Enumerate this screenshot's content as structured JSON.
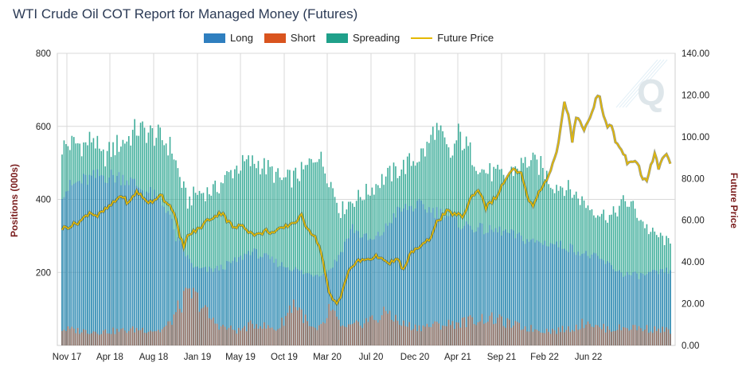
{
  "title": "WTI Crude Oil COT Report for Managed Money (Futures)",
  "legend": [
    {
      "label": "Long",
      "color": "#2f7fbf",
      "kind": "box"
    },
    {
      "label": "Short",
      "color": "#d9541e",
      "kind": "box"
    },
    {
      "label": "Spreading",
      "color": "#1fa08a",
      "kind": "box"
    },
    {
      "label": "Future Price",
      "color": "#e5b800",
      "kind": "line"
    }
  ],
  "chart_data": {
    "type": "bar",
    "title": "WTI Crude Oil COT Report for Managed Money (Futures)",
    "ylabel_left": "Positions (000s)",
    "ylabel_right": "Future Price",
    "ylim_left": [
      0,
      800
    ],
    "ylim_right": [
      0,
      140
    ],
    "yticks_left": [
      "200",
      "400",
      "600",
      "800"
    ],
    "yticks_right": [
      "0.00",
      "20.00",
      "40.00",
      "60.00",
      "80.00",
      "100.00",
      "120.00",
      "140.00"
    ],
    "xticks": [
      "Nov 17",
      "Apr 18",
      "Aug 18",
      "Jan 19",
      "May 19",
      "Oct 19",
      "Mar 20",
      "Jul 20",
      "Dec 20",
      "Apr 21",
      "Sep 21",
      "Feb 22",
      "Jun 22"
    ],
    "grid": true,
    "legend_position": "top",
    "colors": {
      "long": "#2f7fbf",
      "short": "#d9541e",
      "spreading": "#1fa08a",
      "price": "#e5b800"
    },
    "series": [
      {
        "name": "Long",
        "points": [
          [
            0,
            430
          ],
          [
            8,
            455
          ],
          [
            20,
            475
          ],
          [
            32,
            470
          ],
          [
            40,
            440
          ],
          [
            46,
            420
          ],
          [
            54,
            380
          ],
          [
            58,
            300
          ],
          [
            64,
            245
          ],
          [
            68,
            215
          ],
          [
            74,
            210
          ],
          [
            80,
            215
          ],
          [
            90,
            240
          ],
          [
            96,
            265
          ],
          [
            100,
            255
          ],
          [
            106,
            240
          ],
          [
            112,
            225
          ],
          [
            118,
            215
          ],
          [
            124,
            200
          ],
          [
            130,
            200
          ],
          [
            136,
            210
          ],
          [
            140,
            240
          ],
          [
            144,
            285
          ],
          [
            148,
            330
          ],
          [
            152,
            310
          ],
          [
            158,
            290
          ],
          [
            164,
            320
          ],
          [
            170,
            370
          ],
          [
            176,
            385
          ],
          [
            182,
            390
          ],
          [
            190,
            375
          ],
          [
            196,
            365
          ],
          [
            202,
            340
          ],
          [
            210,
            330
          ],
          [
            218,
            320
          ],
          [
            224,
            320
          ],
          [
            234,
            300
          ],
          [
            240,
            290
          ],
          [
            250,
            285
          ],
          [
            260,
            272
          ],
          [
            266,
            255
          ],
          [
            270,
            250
          ],
          [
            276,
            235
          ],
          [
            280,
            220
          ],
          [
            286,
            200
          ],
          [
            294,
            195
          ],
          [
            300,
            200
          ],
          [
            306,
            205
          ],
          [
            310,
            210
          ]
        ]
      },
      {
        "name": "Short",
        "points": [
          [
            0,
            45
          ],
          [
            10,
            40
          ],
          [
            20,
            38
          ],
          [
            30,
            40
          ],
          [
            40,
            45
          ],
          [
            50,
            40
          ],
          [
            55,
            60
          ],
          [
            58,
            90
          ],
          [
            62,
            125
          ],
          [
            66,
            140
          ],
          [
            70,
            120
          ],
          [
            76,
            70
          ],
          [
            82,
            50
          ],
          [
            90,
            40
          ],
          [
            96,
            55
          ],
          [
            100,
            60
          ],
          [
            104,
            50
          ],
          [
            110,
            45
          ],
          [
            114,
            80
          ],
          [
            118,
            120
          ],
          [
            122,
            90
          ],
          [
            126,
            50
          ],
          [
            130,
            40
          ],
          [
            134,
            60
          ],
          [
            136,
            100
          ],
          [
            140,
            70
          ],
          [
            144,
            45
          ],
          [
            150,
            55
          ],
          [
            156,
            70
          ],
          [
            162,
            75
          ],
          [
            166,
            95
          ],
          [
            172,
            60
          ],
          [
            180,
            50
          ],
          [
            190,
            55
          ],
          [
            200,
            60
          ],
          [
            210,
            70
          ],
          [
            216,
            75
          ],
          [
            222,
            70
          ],
          [
            230,
            55
          ],
          [
            240,
            45
          ],
          [
            250,
            40
          ],
          [
            258,
            45
          ],
          [
            264,
            55
          ],
          [
            268,
            70
          ],
          [
            272,
            50
          ],
          [
            280,
            45
          ],
          [
            290,
            50
          ],
          [
            300,
            45
          ],
          [
            310,
            40
          ]
        ]
      },
      {
        "name": "Spreading",
        "points": [
          [
            0,
            555
          ],
          [
            6,
            565
          ],
          [
            12,
            560
          ],
          [
            16,
            585
          ],
          [
            20,
            520
          ],
          [
            24,
            540
          ],
          [
            28,
            560
          ],
          [
            34,
            580
          ],
          [
            38,
            605
          ],
          [
            44,
            595
          ],
          [
            50,
            580
          ],
          [
            56,
            550
          ],
          [
            60,
            470
          ],
          [
            64,
            400
          ],
          [
            68,
            425
          ],
          [
            74,
            430
          ],
          [
            78,
            435
          ],
          [
            82,
            460
          ],
          [
            88,
            495
          ],
          [
            94,
            510
          ],
          [
            100,
            510
          ],
          [
            106,
            490
          ],
          [
            112,
            460
          ],
          [
            118,
            470
          ],
          [
            124,
            490
          ],
          [
            130,
            540
          ],
          [
            136,
            470
          ],
          [
            142,
            375
          ],
          [
            146,
            400
          ],
          [
            150,
            410
          ],
          [
            156,
            430
          ],
          [
            162,
            460
          ],
          [
            168,
            480
          ],
          [
            174,
            500
          ],
          [
            180,
            520
          ],
          [
            186,
            550
          ],
          [
            190,
            610
          ],
          [
            194,
            575
          ],
          [
            198,
            520
          ],
          [
            202,
            590
          ],
          [
            208,
            540
          ],
          [
            214,
            490
          ],
          [
            220,
            480
          ],
          [
            226,
            470
          ],
          [
            232,
            500
          ],
          [
            238,
            515
          ],
          [
            244,
            500
          ],
          [
            250,
            450
          ],
          [
            256,
            445
          ],
          [
            262,
            420
          ],
          [
            268,
            390
          ],
          [
            274,
            370
          ],
          [
            280,
            360
          ],
          [
            286,
            400
          ],
          [
            290,
            395
          ],
          [
            294,
            360
          ],
          [
            300,
            315
          ],
          [
            306,
            300
          ],
          [
            310,
            280
          ]
        ]
      },
      {
        "name": "Future Price",
        "points": [
          [
            0,
            56
          ],
          [
            6,
            58
          ],
          [
            10,
            60
          ],
          [
            14,
            64
          ],
          [
            18,
            62
          ],
          [
            22,
            65
          ],
          [
            26,
            68
          ],
          [
            30,
            72
          ],
          [
            34,
            68
          ],
          [
            38,
            74
          ],
          [
            42,
            70
          ],
          [
            46,
            68
          ],
          [
            50,
            73
          ],
          [
            52,
            70
          ],
          [
            56,
            66
          ],
          [
            58,
            60
          ],
          [
            60,
            52
          ],
          [
            62,
            48
          ],
          [
            64,
            52
          ],
          [
            66,
            54
          ],
          [
            70,
            56
          ],
          [
            74,
            60
          ],
          [
            78,
            62
          ],
          [
            82,
            64
          ],
          [
            84,
            60
          ],
          [
            86,
            58
          ],
          [
            88,
            56
          ],
          [
            92,
            58
          ],
          [
            96,
            54
          ],
          [
            100,
            53
          ],
          [
            104,
            55
          ],
          [
            108,
            54
          ],
          [
            112,
            56
          ],
          [
            116,
            58
          ],
          [
            120,
            60
          ],
          [
            122,
            62
          ],
          [
            124,
            58
          ],
          [
            128,
            53
          ],
          [
            130,
            50
          ],
          [
            132,
            45
          ],
          [
            134,
            35
          ],
          [
            136,
            25
          ],
          [
            138,
            22
          ],
          [
            140,
            20
          ],
          [
            142,
            24
          ],
          [
            144,
            30
          ],
          [
            146,
            35
          ],
          [
            148,
            38
          ],
          [
            150,
            40
          ],
          [
            154,
            41
          ],
          [
            158,
            42
          ],
          [
            162,
            43
          ],
          [
            164,
            40
          ],
          [
            166,
            39
          ],
          [
            170,
            41
          ],
          [
            172,
            40
          ],
          [
            174,
            36
          ],
          [
            176,
            40
          ],
          [
            178,
            45
          ],
          [
            180,
            46
          ],
          [
            184,
            48
          ],
          [
            188,
            52
          ],
          [
            190,
            58
          ],
          [
            192,
            60
          ],
          [
            196,
            64
          ],
          [
            200,
            63
          ],
          [
            204,
            62
          ],
          [
            206,
            65
          ],
          [
            208,
            70
          ],
          [
            210,
            73
          ],
          [
            212,
            74
          ],
          [
            214,
            72
          ],
          [
            216,
            66
          ],
          [
            218,
            68
          ],
          [
            222,
            72
          ],
          [
            226,
            80
          ],
          [
            230,
            84
          ],
          [
            234,
            82
          ],
          [
            236,
            75
          ],
          [
            238,
            70
          ],
          [
            240,
            66
          ],
          [
            242,
            72
          ],
          [
            246,
            78
          ],
          [
            248,
            82
          ],
          [
            250,
            87
          ],
          [
            252,
            92
          ],
          [
            254,
            104
          ],
          [
            256,
            116
          ],
          [
            258,
            110
          ],
          [
            260,
            98
          ],
          [
            262,
            110
          ],
          [
            264,
            108
          ],
          [
            266,
            103
          ],
          [
            268,
            107
          ],
          [
            270,
            112
          ],
          [
            272,
            118
          ],
          [
            274,
            120
          ],
          [
            276,
            110
          ],
          [
            278,
            104
          ],
          [
            280,
            106
          ],
          [
            282,
            98
          ],
          [
            284,
            95
          ],
          [
            286,
            92
          ],
          [
            288,
            88
          ],
          [
            290,
            89
          ],
          [
            292,
            88
          ],
          [
            294,
            85
          ],
          [
            296,
            80
          ],
          [
            298,
            79
          ],
          [
            300,
            86
          ],
          [
            302,
            92
          ],
          [
            304,
            85
          ],
          [
            306,
            89
          ],
          [
            308,
            92
          ],
          [
            310,
            88
          ]
        ]
      }
    ]
  }
}
